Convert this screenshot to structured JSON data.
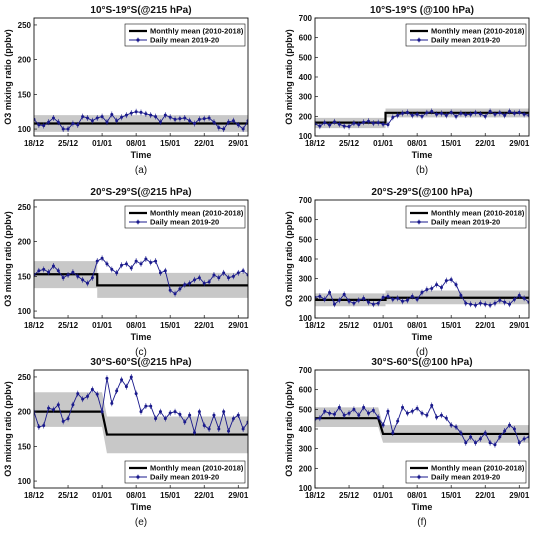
{
  "figure": {
    "panels": [
      {
        "title": "10°S-19°S(@215 hPa)",
        "label": "(a)"
      },
      {
        "title": "10°S-19°S (@100 hPa)",
        "label": "(b)"
      },
      {
        "title": "20°S-29°S(@215 hPa)",
        "label": "(c)"
      },
      {
        "title": "20°S-29°S(@100 hPa)",
        "label": "(d)"
      },
      {
        "title": "30°S-60°S(@215 hPa)",
        "label": "(e)"
      },
      {
        "title": "30°S-60°S(@100 hPa)",
        "label": "(f)"
      }
    ]
  },
  "colors": {
    "daily": "#1a1a8c",
    "monthly": "#000000",
    "band": "#c8c8c8"
  },
  "chart_data": [
    {
      "type": "line",
      "title": "10°S-19°S(@215 hPa)",
      "xlabel": "Time",
      "ylabel": "O3 mixing ratio (ppbv)",
      "xticks": [
        "18/12",
        "25/12",
        "01/01",
        "08/01",
        "15/01",
        "22/01",
        "29/01"
      ],
      "xlim": [
        0,
        44
      ],
      "ylim": [
        90,
        260
      ],
      "yticks": [
        100,
        150,
        200,
        250
      ],
      "legend": [
        "Monthly mean (2010-2018)",
        "Daily mean 2019-20"
      ],
      "legend_position": "top-right",
      "series": [
        {
          "name": "Monthly mean (2010-2018)",
          "x": [
            0,
            44
          ],
          "values": [
            108,
            108
          ],
          "band_low": [
            96,
            96
          ],
          "band_high": [
            120,
            120
          ]
        },
        {
          "name": "Daily mean 2019-20",
          "values": [
            114,
            106,
            105,
            110,
            116,
            110,
            100,
            100,
            108,
            106,
            118,
            116,
            112,
            116,
            118,
            110,
            121,
            112,
            117,
            120,
            123,
            125,
            124,
            122,
            120,
            118,
            110,
            120,
            117,
            114,
            115,
            116,
            112,
            108,
            114,
            115,
            116,
            110,
            102,
            100,
            110,
            112,
            106,
            100,
            112
          ]
        }
      ]
    },
    {
      "type": "line",
      "title": "10°S-19°S (@100 hPa)",
      "xlabel": "Time",
      "ylabel": "O3 mixing ratio (ppbv)",
      "xticks": [
        "18/12",
        "25/12",
        "01/01",
        "08/01",
        "15/01",
        "22/01",
        "29/01"
      ],
      "xlim": [
        0,
        44
      ],
      "ylim": [
        100,
        700
      ],
      "yticks": [
        100,
        200,
        300,
        400,
        500,
        600,
        700
      ],
      "legend": [
        "Monthly mean (2010-2018)",
        "Daily mean 2019-20"
      ],
      "legend_position": "top-right",
      "series": [
        {
          "name": "Monthly mean (2010-2018)",
          "x": [
            0,
            14.5,
            14.5,
            44
          ],
          "values": [
            168,
            168,
            218,
            218
          ],
          "band_low": [
            140,
            140,
            195,
            195
          ],
          "band_high": [
            192,
            192,
            240,
            240
          ]
        },
        {
          "name": "Daily mean 2019-20",
          "values": [
            162,
            150,
            168,
            155,
            172,
            160,
            150,
            148,
            165,
            158,
            170,
            175,
            165,
            168,
            160,
            158,
            195,
            205,
            215,
            220,
            205,
            210,
            200,
            218,
            225,
            210,
            215,
            205,
            220,
            200,
            215,
            208,
            210,
            218,
            212,
            200,
            225,
            210,
            218,
            205,
            225,
            215,
            220,
            210,
            205
          ]
        }
      ]
    },
    {
      "type": "line",
      "title": "20°S-29°S(@215 hPa)",
      "xlabel": "Time",
      "ylabel": "O3 mixing ratio (ppbv)",
      "xticks": [
        "18/12",
        "25/12",
        "01/01",
        "08/01",
        "15/01",
        "22/01",
        "29/01"
      ],
      "xlim": [
        0,
        44
      ],
      "ylim": [
        90,
        260
      ],
      "yticks": [
        100,
        150,
        200,
        250
      ],
      "legend": [
        "Monthly mean (2010-2018)",
        "Daily mean 2019-20"
      ],
      "legend_position": "top-right",
      "series": [
        {
          "name": "Monthly mean (2010-2018)",
          "x": [
            0,
            13,
            13,
            44
          ],
          "values": [
            153,
            153,
            137,
            137
          ],
          "band_low": [
            133,
            133,
            119,
            119
          ],
          "band_high": [
            172,
            172,
            155,
            155
          ]
        },
        {
          "name": "Daily mean 2019-20",
          "values": [
            152,
            158,
            160,
            156,
            165,
            158,
            148,
            152,
            156,
            150,
            145,
            140,
            148,
            172,
            176,
            168,
            160,
            155,
            166,
            168,
            162,
            172,
            168,
            175,
            170,
            172,
            155,
            158,
            130,
            125,
            132,
            138,
            140,
            145,
            148,
            140,
            142,
            152,
            148,
            155,
            148,
            150,
            155,
            158,
            152
          ]
        }
      ]
    },
    {
      "type": "line",
      "title": "20°S-29°S(@100 hPa)",
      "xlabel": "Time",
      "ylabel": "O3 mixing ratio (ppbv)",
      "xticks": [
        "18/12",
        "25/12",
        "01/01",
        "08/01",
        "15/01",
        "22/01",
        "29/01"
      ],
      "xlim": [
        0,
        44
      ],
      "ylim": [
        100,
        700
      ],
      "yticks": [
        100,
        200,
        300,
        400,
        500,
        600,
        700
      ],
      "legend": [
        "Monthly mean (2010-2018)",
        "Daily mean 2019-20"
      ],
      "legend_position": "top-right",
      "series": [
        {
          "name": "Monthly mean (2010-2018)",
          "x": [
            0,
            14.5,
            14.5,
            44
          ],
          "values": [
            192,
            192,
            203,
            203
          ],
          "band_low": [
            160,
            160,
            170,
            170
          ],
          "band_high": [
            225,
            225,
            240,
            240
          ]
        },
        {
          "name": "Daily mean 2019-20",
          "values": [
            205,
            210,
            195,
            230,
            170,
            190,
            220,
            185,
            175,
            190,
            200,
            180,
            170,
            175,
            205,
            210,
            195,
            200,
            185,
            190,
            210,
            195,
            230,
            245,
            250,
            270,
            255,
            290,
            295,
            270,
            215,
            175,
            170,
            165,
            175,
            170,
            165,
            175,
            190,
            180,
            170,
            195,
            215,
            200,
            180
          ]
        }
      ]
    },
    {
      "type": "line",
      "title": "30°S-60°S(@215 hPa)",
      "xlabel": "Time",
      "ylabel": "O3 mixing ratio (ppbv)",
      "xticks": [
        "18/12",
        "25/12",
        "01/01",
        "08/01",
        "15/01",
        "22/01",
        "29/01"
      ],
      "xlim": [
        0,
        44
      ],
      "ylim": [
        90,
        260
      ],
      "yticks": [
        100,
        150,
        200,
        250
      ],
      "legend": [
        "Monthly mean (2010-2018)",
        "Daily mean 2019-20"
      ],
      "legend_position": "bottom-right",
      "series": [
        {
          "name": "Monthly mean (2010-2018)",
          "x": [
            0,
            14,
            15,
            44
          ],
          "values": [
            200,
            200,
            167,
            167
          ],
          "band_low": [
            178,
            178,
            140,
            140
          ],
          "band_high": [
            228,
            228,
            193,
            193
          ]
        },
        {
          "name": "Daily mean 2019-20",
          "values": [
            200,
            178,
            180,
            205,
            203,
            210,
            186,
            190,
            210,
            226,
            218,
            222,
            232,
            225,
            200,
            248,
            212,
            230,
            246,
            236,
            250,
            226,
            200,
            208,
            208,
            190,
            200,
            190,
            198,
            200,
            196,
            185,
            195,
            170,
            200,
            180,
            175,
            195,
            175,
            200,
            172,
            190,
            195,
            175,
            185
          ]
        }
      ]
    },
    {
      "type": "line",
      "title": "30°S-60°S(@100 hPa)",
      "xlabel": "Time",
      "ylabel": "O3 mixing ratio (ppbv)",
      "xticks": [
        "18/12",
        "25/12",
        "01/01",
        "08/01",
        "15/01",
        "22/01",
        "29/01"
      ],
      "xlim": [
        0,
        44
      ],
      "ylim": [
        100,
        700
      ],
      "yticks": [
        100,
        200,
        300,
        400,
        500,
        600,
        700
      ],
      "legend": [
        "Monthly mean (2010-2018)",
        "Daily mean 2019-20"
      ],
      "legend_position": "bottom-right",
      "series": [
        {
          "name": "Monthly mean (2010-2018)",
          "x": [
            0,
            13,
            14,
            44
          ],
          "values": [
            455,
            455,
            375,
            375
          ],
          "band_low": [
            410,
            410,
            330,
            330
          ],
          "band_high": [
            510,
            510,
            420,
            420
          ]
        },
        {
          "name": "Daily mean 2019-20",
          "values": [
            450,
            455,
            490,
            480,
            475,
            510,
            470,
            480,
            500,
            470,
            510,
            480,
            495,
            460,
            420,
            490,
            380,
            440,
            510,
            480,
            490,
            505,
            480,
            470,
            520,
            460,
            470,
            455,
            420,
            410,
            380,
            330,
            360,
            330,
            350,
            380,
            330,
            320,
            360,
            390,
            420,
            400,
            330,
            350,
            360
          ]
        }
      ]
    }
  ]
}
